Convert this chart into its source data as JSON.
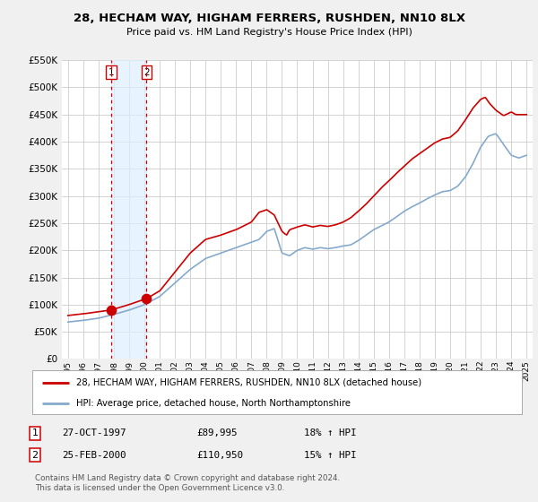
{
  "title": "28, HECHAM WAY, HIGHAM FERRERS, RUSHDEN, NN10 8LX",
  "subtitle": "Price paid vs. HM Land Registry's House Price Index (HPI)",
  "legend_line1": "28, HECHAM WAY, HIGHAM FERRERS, RUSHDEN, NN10 8LX (detached house)",
  "legend_line2": "HPI: Average price, detached house, North Northamptonshire",
  "copyright": "Contains HM Land Registry data © Crown copyright and database right 2024.\nThis data is licensed under the Open Government Licence v3.0.",
  "transactions": [
    {
      "label": "1",
      "date": "27-OCT-1997",
      "price": "£89,995",
      "hpi_pct": "18% ↑ HPI",
      "x": 1997.82
    },
    {
      "label": "2",
      "date": "25-FEB-2000",
      "price": "£110,950",
      "hpi_pct": "15% ↑ HPI",
      "x": 2000.14
    }
  ],
  "sale_color": "#cc0000",
  "hpi_color": "#85aacc",
  "vline_color": "#cc0000",
  "dot_color": "#cc0000",
  "shade_color": "#ddeeff",
  "ylim": [
    0,
    550000
  ],
  "yticks": [
    0,
    50000,
    100000,
    150000,
    200000,
    250000,
    300000,
    350000,
    400000,
    450000,
    500000,
    550000
  ],
  "xlim_left": 1994.6,
  "xlim_right": 2025.4,
  "background_color": "#f0f0f0",
  "plot_bg": "#ffffff",
  "grid_color": "#cccccc",
  "sale_data_x": [
    1997.82,
    2000.14
  ],
  "sale_data_y": [
    89995,
    110950
  ]
}
